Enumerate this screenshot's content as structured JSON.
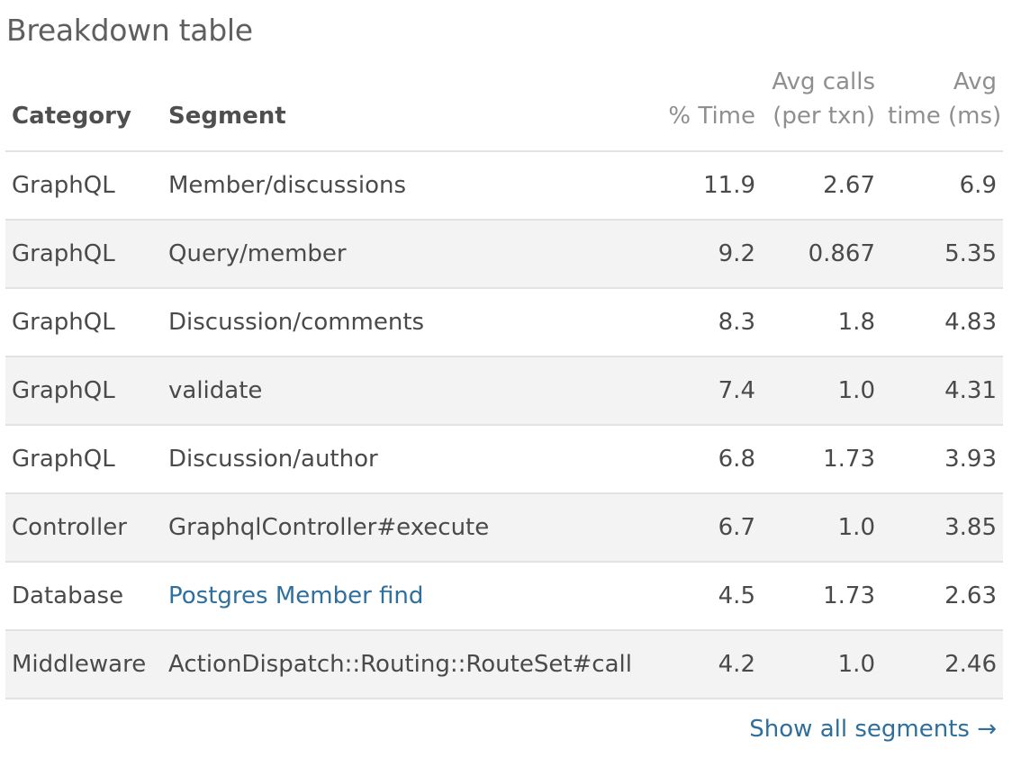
{
  "title": "Breakdown table",
  "columns": {
    "category": "Category",
    "segment": "Segment",
    "pct_time": "% Time",
    "avg_calls_line1": "Avg calls",
    "avg_calls_line2": "(per txn)",
    "avg_time_line1": "Avg",
    "avg_time_line2": "time (ms)"
  },
  "rows": [
    {
      "category": "GraphQL",
      "segment": "Member/discussions",
      "pct_time": "11.9",
      "avg_calls": "2.67",
      "avg_time": "6.9"
    },
    {
      "category": "GraphQL",
      "segment": "Query/member",
      "pct_time": "9.2",
      "avg_calls": "0.867",
      "avg_time": "5.35"
    },
    {
      "category": "GraphQL",
      "segment": "Discussion/comments",
      "pct_time": "8.3",
      "avg_calls": "1.8",
      "avg_time": "4.83"
    },
    {
      "category": "GraphQL",
      "segment": "validate",
      "pct_time": "7.4",
      "avg_calls": "1.0",
      "avg_time": "4.31"
    },
    {
      "category": "GraphQL",
      "segment": "Discussion/author",
      "pct_time": "6.8",
      "avg_calls": "1.73",
      "avg_time": "3.93"
    },
    {
      "category": "Controller",
      "segment": "GraphqlController#execute",
      "pct_time": "6.7",
      "avg_calls": "1.0",
      "avg_time": "3.85"
    },
    {
      "category": "Database",
      "segment": "Postgres Member find",
      "pct_time": "4.5",
      "avg_calls": "1.73",
      "avg_time": "2.63"
    },
    {
      "category": "Middleware",
      "segment": "ActionDispatch::Routing::RouteSet#call",
      "pct_time": "4.2",
      "avg_calls": "1.0",
      "avg_time": "2.46"
    }
  ],
  "show_all": "Show all segments →",
  "colors": {
    "link": "#2e6f9e",
    "row_alt": "#f3f3f3",
    "border": "#e2e2e2"
  }
}
